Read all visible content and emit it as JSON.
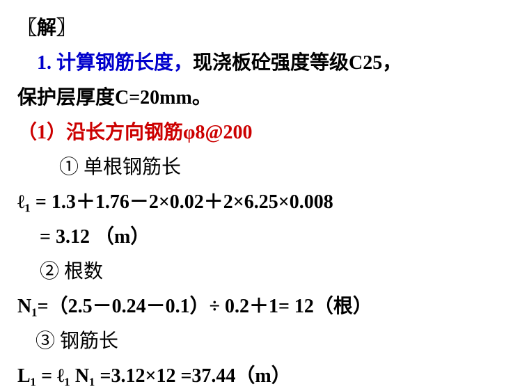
{
  "header": "〖解〗",
  "section1_prefix": "1. 计算钢筋长度，",
  "section1_suffix1": "现浇板砼强度等级C25，",
  "section1_line2": "保护层厚度C=20mm。",
  "subsection1": "（1）沿长方向钢筋φ8@200",
  "item1_label": "① 单根钢筋长",
  "formula1": "ℓ₁ = 1.3＋1.76－2×0.02＋2×6.25×0.008",
  "formula1_result": "= 3.12 （m）",
  "item2_label": "② 根数",
  "formula2": "N₁=（2.5－0.24－0.1）÷ 0.2＋1= 12（根）",
  "item3_label": "③ 钢筋长",
  "formula3": "L₁ = ℓ₁ N₁ =3.12×12 =37.44（m）",
  "colors": {
    "blue": "#0000cc",
    "red": "#cc0000",
    "black": "#000000",
    "background": "#ffffff"
  },
  "typography": {
    "main_fontsize": 28,
    "sub_fontsize": 18,
    "font_family": "SimSun"
  }
}
